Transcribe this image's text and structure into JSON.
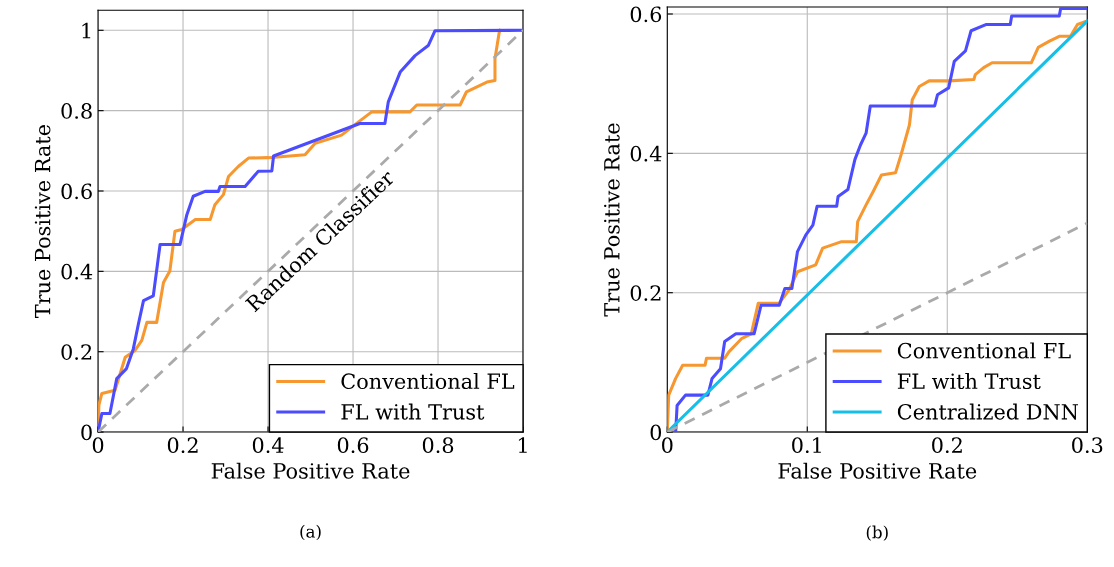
{
  "chart_data": [
    {
      "type": "line",
      "xlabel": "False Positive Rate",
      "ylabel": "True Positive Rate",
      "xlim": [
        0,
        1
      ],
      "ylim": [
        0,
        1.05
      ],
      "xticks": [
        0,
        0.2,
        0.4,
        0.6,
        0.8,
        1
      ],
      "yticks": [
        0,
        0.2,
        0.4,
        0.6,
        0.8,
        1
      ],
      "grid": true,
      "legend": "bottom right",
      "marker": "none",
      "series": [
        {
          "name": "Conventional FL",
          "color": "#f7972f",
          "line_style": "solid",
          "x": [
            0,
            0.002,
            0.009,
            0.04,
            0.064,
            0.087,
            0.103,
            0.115,
            0.138,
            0.154,
            0.169,
            0.181,
            0.197,
            0.229,
            0.264,
            0.275,
            0.295,
            0.307,
            0.33,
            0.354,
            0.401,
            0.487,
            0.511,
            0.573,
            0.613,
            0.644,
            0.734,
            0.75,
            0.852,
            0.867,
            0.915,
            0.934,
            0.934,
            0.944,
            0.946
          ],
          "values": [
            0,
            0.067,
            0.096,
            0.104,
            0.186,
            0.203,
            0.228,
            0.273,
            0.273,
            0.372,
            0.401,
            0.5,
            0.504,
            0.529,
            0.529,
            0.566,
            0.591,
            0.636,
            0.661,
            0.682,
            0.683,
            0.69,
            0.719,
            0.739,
            0.772,
            0.797,
            0.797,
            0.814,
            0.814,
            0.847,
            0.871,
            0.875,
            0.929,
            0.995,
            1
          ]
        },
        {
          "name": "FL with Trust",
          "color": "#4b4bff",
          "line_style": "solid",
          "x": [
            0,
            0.009,
            0.028,
            0.044,
            0.067,
            0.083,
            0.095,
            0.107,
            0.13,
            0.146,
            0.193,
            0.209,
            0.224,
            0.252,
            0.283,
            0.287,
            0.346,
            0.377,
            0.409,
            0.413,
            0.616,
            0.675,
            0.683,
            0.711,
            0.746,
            0.777,
            0.793,
            1
          ],
          "values": [
            0,
            0.046,
            0.046,
            0.133,
            0.158,
            0.207,
            0.269,
            0.327,
            0.339,
            0.467,
            0.467,
            0.541,
            0.587,
            0.599,
            0.599,
            0.611,
            0.611,
            0.649,
            0.65,
            0.687,
            0.768,
            0.768,
            0.822,
            0.896,
            0.937,
            0.962,
            0.999,
            1
          ]
        },
        {
          "color": "#aaaaaa",
          "line_style": "dashed",
          "x": [
            0,
            1
          ],
          "values": [
            0,
            1
          ]
        }
      ],
      "annotations": [
        {
          "text": "Random Classifier",
          "x": 0.5,
          "y": 0.5
        },
        "(a)"
      ]
    },
    {
      "type": "line",
      "xlabel": "False Positive Rate",
      "ylabel": "True Positive Rate",
      "xlim": [
        0,
        0.3
      ],
      "ylim": [
        0,
        0.61
      ],
      "xticks": [
        0,
        0.1,
        0.2,
        0.3
      ],
      "yticks": [
        0,
        0.2,
        0.4,
        0.6
      ],
      "grid": true,
      "legend": "bottom right",
      "marker": "none",
      "series": [
        {
          "name": "Conventional FL",
          "color": "#f7972f",
          "line_style": "solid",
          "x": [
            0,
            0.001,
            0.006,
            0.011,
            0.027,
            0.028,
            0.041,
            0.044,
            0.053,
            0.06,
            0.065,
            0.08,
            0.087,
            0.093,
            0.106,
            0.111,
            0.124,
            0.135,
            0.136,
            0.142,
            0.147,
            0.153,
            0.163,
            0.167,
            0.173,
            0.175,
            0.18,
            0.187,
            0.201,
            0.219,
            0.22,
            0.226,
            0.232,
            0.26,
            0.265,
            0.273,
            0.28,
            0.288,
            0.293,
            0.3
          ],
          "values": [
            0,
            0.053,
            0.077,
            0.096,
            0.096,
            0.106,
            0.106,
            0.115,
            0.134,
            0.141,
            0.185,
            0.185,
            0.204,
            0.23,
            0.24,
            0.264,
            0.273,
            0.273,
            0.302,
            0.326,
            0.345,
            0.369,
            0.372,
            0.398,
            0.441,
            0.477,
            0.496,
            0.504,
            0.504,
            0.506,
            0.513,
            0.523,
            0.53,
            0.53,
            0.552,
            0.561,
            0.568,
            0.568,
            0.585,
            0.59
          ]
        },
        {
          "name": "FL with Trust",
          "color": "#4b4bff",
          "line_style": "solid",
          "x": [
            0,
            0.006,
            0.007,
            0.013,
            0.029,
            0.032,
            0.038,
            0.041,
            0.049,
            0.062,
            0.067,
            0.08,
            0.084,
            0.089,
            0.093,
            0.099,
            0.104,
            0.107,
            0.121,
            0.122,
            0.129,
            0.134,
            0.138,
            0.142,
            0.145,
            0.191,
            0.193,
            0.201,
            0.205,
            0.213,
            0.217,
            0.228,
            0.245,
            0.246,
            0.28,
            0.281,
            0.3
          ],
          "values": [
            0,
            0,
            0.038,
            0.053,
            0.053,
            0.077,
            0.091,
            0.13,
            0.141,
            0.141,
            0.182,
            0.182,
            0.206,
            0.206,
            0.259,
            0.283,
            0.297,
            0.324,
            0.324,
            0.338,
            0.348,
            0.391,
            0.412,
            0.429,
            0.468,
            0.468,
            0.484,
            0.494,
            0.532,
            0.547,
            0.576,
            0.585,
            0.585,
            0.597,
            0.597,
            0.608,
            0.608
          ]
        },
        {
          "name": "Centralized DNN",
          "color": "#16bfe8",
          "line_style": "solid",
          "x": [
            0,
            0.3
          ],
          "values": [
            0,
            0.59
          ]
        },
        {
          "color": "#aaaaaa",
          "line_style": "dashed",
          "x": [
            0,
            0.3
          ],
          "values": [
            0,
            0.3
          ]
        }
      ],
      "annotations": [
        "(b)"
      ]
    }
  ]
}
